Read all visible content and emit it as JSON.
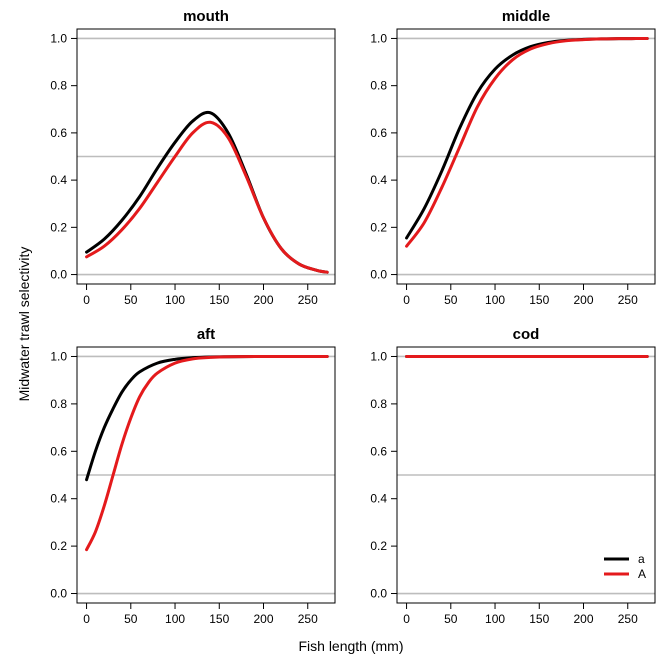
{
  "figure": {
    "ylabel": "Midwater trawl selectivity",
    "xlabel": "Fish length  (mm)"
  },
  "legend": {
    "placement": "bottom-right of cod panel",
    "entries": [
      {
        "label": "a",
        "color": "#000000"
      },
      {
        "label": "A",
        "color": "#e41a1c"
      }
    ]
  },
  "chart_data": [
    {
      "type": "line",
      "title": "mouth",
      "xlim": [
        0,
        270
      ],
      "ylim": [
        0,
        1
      ],
      "xticks": [
        0,
        50,
        100,
        150,
        200,
        250
      ],
      "yticks": [
        0.0,
        0.2,
        0.4,
        0.6,
        0.8,
        1.0
      ],
      "ytick_labels": [
        "0.0",
        "0.2",
        "0.4",
        "0.6",
        "0.8",
        "1.0"
      ],
      "reference_lines": [
        0,
        0.5,
        1.0
      ],
      "series": [
        {
          "name": "a",
          "color": "#000000",
          "x": [
            0,
            20,
            40,
            60,
            80,
            100,
            120,
            140,
            160,
            180,
            200,
            220,
            240,
            260,
            272
          ],
          "y": [
            0.095,
            0.15,
            0.23,
            0.33,
            0.45,
            0.56,
            0.65,
            0.685,
            0.6,
            0.43,
            0.24,
            0.11,
            0.045,
            0.018,
            0.01
          ]
        },
        {
          "name": "A",
          "color": "#e41a1c",
          "x": [
            0,
            20,
            40,
            60,
            80,
            100,
            120,
            140,
            160,
            180,
            200,
            220,
            240,
            260,
            272
          ],
          "y": [
            0.075,
            0.12,
            0.19,
            0.28,
            0.39,
            0.5,
            0.6,
            0.645,
            0.58,
            0.42,
            0.24,
            0.11,
            0.045,
            0.018,
            0.01
          ]
        }
      ]
    },
    {
      "type": "line",
      "title": "middle",
      "xlim": [
        0,
        270
      ],
      "ylim": [
        0,
        1
      ],
      "xticks": [
        0,
        50,
        100,
        150,
        200,
        250
      ],
      "yticks": [
        0.0,
        0.2,
        0.4,
        0.6,
        0.8,
        1.0
      ],
      "ytick_labels": [
        "0.0",
        "0.2",
        "0.4",
        "0.6",
        "0.8",
        "1.0"
      ],
      "reference_lines": [
        0,
        0.5,
        1.0
      ],
      "series": [
        {
          "name": "a",
          "color": "#000000",
          "x": [
            0,
            20,
            40,
            60,
            80,
            100,
            120,
            140,
            160,
            180,
            200,
            220,
            240,
            272
          ],
          "y": [
            0.155,
            0.28,
            0.44,
            0.62,
            0.77,
            0.87,
            0.93,
            0.965,
            0.983,
            0.992,
            0.996,
            0.998,
            0.999,
            1.0
          ]
        },
        {
          "name": "A",
          "color": "#e41a1c",
          "x": [
            0,
            20,
            40,
            60,
            80,
            100,
            120,
            140,
            160,
            180,
            200,
            220,
            240,
            272
          ],
          "y": [
            0.12,
            0.22,
            0.37,
            0.54,
            0.71,
            0.83,
            0.91,
            0.955,
            0.978,
            0.99,
            0.995,
            0.998,
            0.999,
            1.0
          ]
        }
      ]
    },
    {
      "type": "line",
      "title": "aft",
      "xlim": [
        0,
        270
      ],
      "ylim": [
        0,
        1
      ],
      "xticks": [
        0,
        50,
        100,
        150,
        200,
        250
      ],
      "yticks": [
        0.0,
        0.2,
        0.4,
        0.6,
        0.8,
        1.0
      ],
      "ytick_labels": [
        "0.0",
        "0.2",
        "0.4",
        "0.6",
        "0.8",
        "1.0"
      ],
      "reference_lines": [
        0,
        0.5,
        1.0
      ],
      "series": [
        {
          "name": "a",
          "color": "#000000",
          "x": [
            0,
            10,
            20,
            30,
            40,
            50,
            60,
            80,
            100,
            120,
            140,
            160,
            200,
            272
          ],
          "y": [
            0.48,
            0.6,
            0.7,
            0.78,
            0.85,
            0.9,
            0.935,
            0.972,
            0.988,
            0.995,
            0.998,
            0.999,
            1.0,
            1.0
          ]
        },
        {
          "name": "A",
          "color": "#e41a1c",
          "x": [
            0,
            10,
            20,
            30,
            40,
            50,
            60,
            70,
            80,
            100,
            120,
            140,
            160,
            200,
            272
          ],
          "y": [
            0.185,
            0.26,
            0.37,
            0.5,
            0.63,
            0.74,
            0.83,
            0.89,
            0.93,
            0.972,
            0.99,
            0.996,
            0.999,
            1.0,
            1.0
          ]
        }
      ]
    },
    {
      "type": "line",
      "title": "cod",
      "xlim": [
        0,
        270
      ],
      "ylim": [
        0,
        1
      ],
      "xticks": [
        0,
        50,
        100,
        150,
        200,
        250
      ],
      "yticks": [
        0.0,
        0.2,
        0.4,
        0.6,
        0.8,
        1.0
      ],
      "ytick_labels": [
        "0.0",
        "0.2",
        "0.4",
        "0.6",
        "0.8",
        "1.0"
      ],
      "reference_lines": [
        0,
        0.5,
        1.0
      ],
      "series": [
        {
          "name": "a",
          "color": "#000000",
          "x": [
            0,
            272
          ],
          "y": [
            1.0,
            1.0
          ]
        },
        {
          "name": "A",
          "color": "#e41a1c",
          "x": [
            0,
            272
          ],
          "y": [
            1.0,
            1.0
          ]
        }
      ]
    }
  ]
}
